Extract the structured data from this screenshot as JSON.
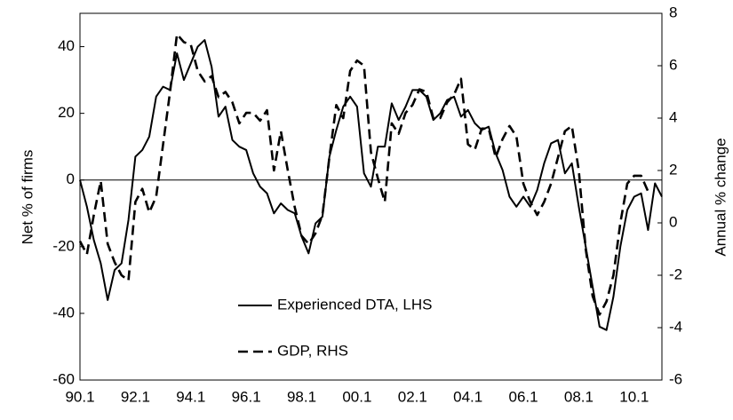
{
  "chart_data": {
    "type": "line",
    "y_label": "Net % of firms",
    "y2_label": "Annual % change",
    "categories": [
      "90.1",
      null,
      null,
      null,
      null,
      null,
      null,
      null,
      "92.1",
      null,
      null,
      null,
      null,
      null,
      null,
      null,
      "94.1",
      null,
      null,
      null,
      null,
      null,
      null,
      null,
      "96.1",
      null,
      null,
      null,
      null,
      null,
      null,
      null,
      "98.1",
      null,
      null,
      null,
      null,
      null,
      null,
      null,
      "00.1",
      null,
      null,
      null,
      null,
      null,
      null,
      null,
      "02.1",
      null,
      null,
      null,
      null,
      null,
      null,
      null,
      "04.1",
      null,
      null,
      null,
      null,
      null,
      null,
      null,
      "06.1",
      null,
      null,
      null,
      null,
      null,
      null,
      null,
      "08.1",
      null,
      null,
      null,
      null,
      null,
      null,
      null,
      "10.1",
      null,
      null,
      null,
      null
    ],
    "series": [
      {
        "name": "Experienced DTA, LHS",
        "color": "#000000",
        "dash": false,
        "values": [
          0,
          -8,
          -18,
          -25,
          -36,
          -27,
          -25,
          -12,
          7,
          9,
          13,
          25,
          28,
          27,
          38,
          30,
          35,
          40,
          42,
          34,
          19,
          22,
          12,
          10,
          9,
          2,
          -2,
          -4,
          -10,
          -7,
          -9,
          -10,
          -17,
          -22,
          -13,
          -11,
          7,
          15,
          22,
          25,
          22,
          2,
          -2,
          10,
          10,
          23,
          18,
          22,
          27,
          27,
          25,
          18,
          20,
          24,
          25,
          19,
          21,
          17,
          15,
          16,
          8,
          3,
          -5,
          -8,
          -5,
          -8,
          -3,
          5,
          11,
          12,
          2,
          5,
          -8,
          -20,
          -32,
          -44,
          -45,
          -35,
          -20,
          -9,
          -5,
          -4,
          -15,
          -1,
          -5
        ]
      },
      {
        "name": "GDP, RHS",
        "color": "#000000",
        "dash": true,
        "axis": "y2",
        "values": [
          -0.7,
          -1.2,
          0.3,
          1.6,
          -0.8,
          -1.5,
          -2.0,
          -2.2,
          0.8,
          1.3,
          0.4,
          1.0,
          3.0,
          5.0,
          7.2,
          6.9,
          6.8,
          5.8,
          5.4,
          5.6,
          4.8,
          5.0,
          4.6,
          3.8,
          4.2,
          4.2,
          3.9,
          4.3,
          2.0,
          3.5,
          2.0,
          0.6,
          -0.5,
          -0.8,
          -0.4,
          0.3,
          2.5,
          4.5,
          4.0,
          5.8,
          6.2,
          6.0,
          2.7,
          1.7,
          0.8,
          3.8,
          3.4,
          4.2,
          4.5,
          5.1,
          5.0,
          4.0,
          4.0,
          4.6,
          4.9,
          5.5,
          3.0,
          2.8,
          3.6,
          3.6,
          2.5,
          3.2,
          3.7,
          3.3,
          1.5,
          0.8,
          0.3,
          0.8,
          1.5,
          2.5,
          3.5,
          3.7,
          2.0,
          -1.0,
          -2.8,
          -3.5,
          -3.0,
          -2.0,
          0.0,
          1.5,
          1.8,
          1.8,
          1.2,
          null,
          null
        ]
      }
    ],
    "ylim": [
      -60,
      50
    ],
    "yticks": [
      -60,
      -40,
      -20,
      0,
      20,
      40
    ],
    "y2lim": [
      -6,
      8
    ],
    "y2ticks": [
      -6,
      -4,
      -2,
      0,
      2,
      4,
      6,
      8
    ]
  }
}
